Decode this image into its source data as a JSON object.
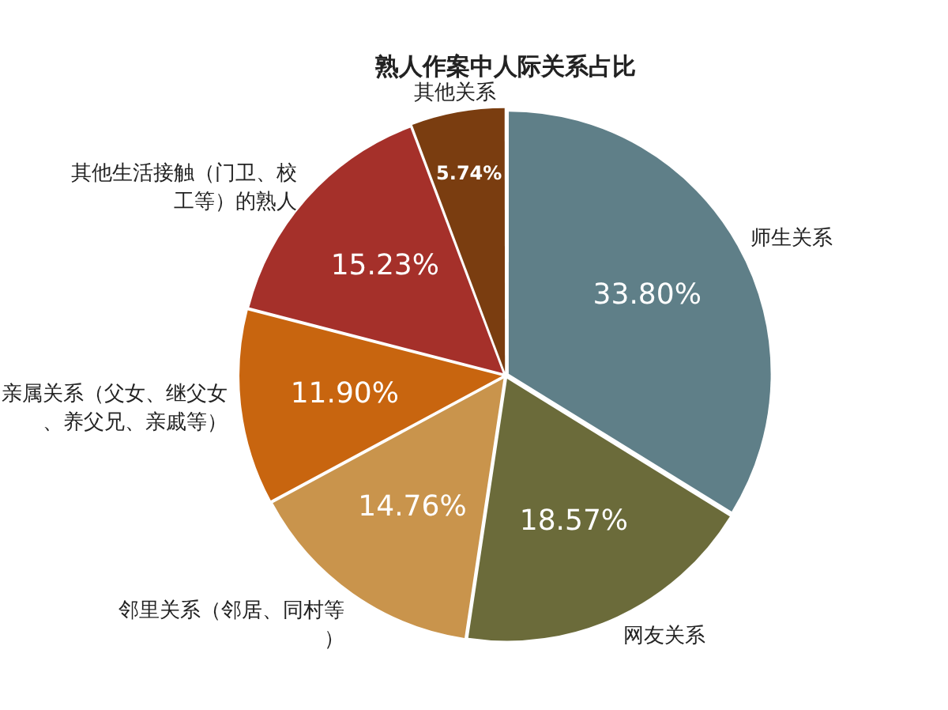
{
  "chart_data": {
    "type": "pie",
    "title": "熟人作案中人际关系占比",
    "categories": [
      "师生关系",
      "网友关系",
      "邻里关系（邻居、同村等）",
      "亲属关系（父女、继父女、养父兄、亲戚等）",
      "其他生活接触（门卫、校工等）的熟人",
      "其他关系"
    ],
    "values": [
      33.8,
      18.57,
      14.76,
      11.9,
      15.23,
      5.74
    ],
    "value_labels": [
      "33.80%",
      "18.57%",
      "14.76%",
      "11.90%",
      "15.23%",
      "5.74%"
    ],
    "colors": [
      "#5f7f88",
      "#6b6b3a",
      "#c9944c",
      "#c8650f",
      "#a5302a",
      "#7a3d10"
    ],
    "legend": false
  }
}
